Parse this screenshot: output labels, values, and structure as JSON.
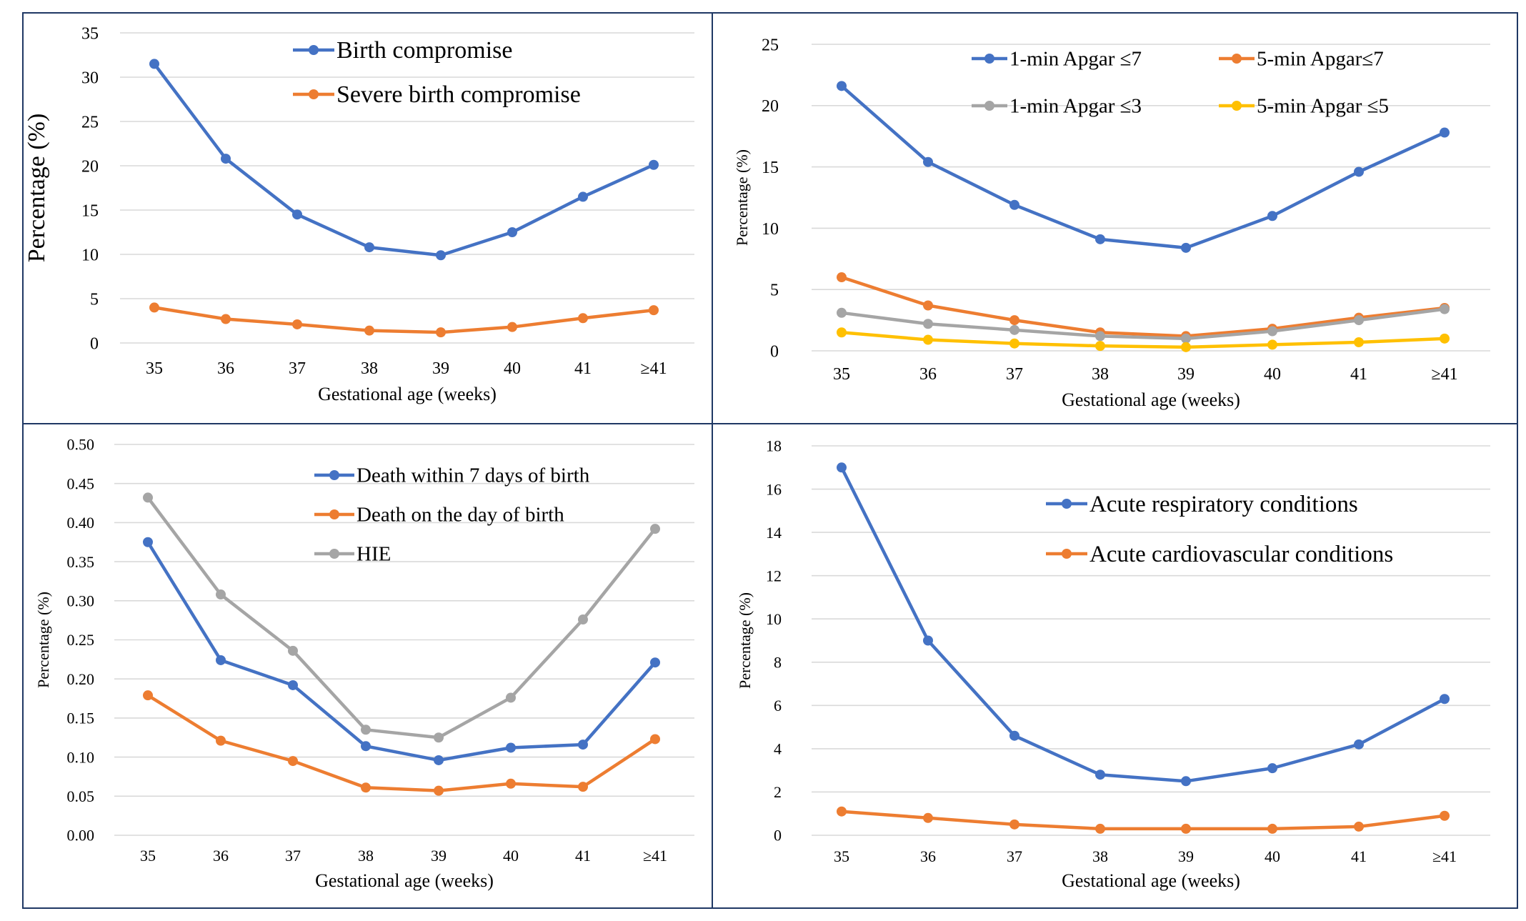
{
  "chart_data": [
    {
      "type": "line",
      "categories": [
        "35",
        "36",
        "37",
        "38",
        "39",
        "40",
        "41",
        "≥41"
      ],
      "xlabel": "Gestational age (weeks)",
      "ylabel": "Percentage (%)",
      "ylim": [
        0,
        35
      ],
      "yticks": [
        "0",
        "5",
        "10",
        "15",
        "20",
        "25",
        "30",
        "35"
      ],
      "grid": true,
      "legend_position": "top",
      "series": [
        {
          "name": "Birth compromise",
          "color": "#4472c4",
          "values": [
            31.5,
            20.8,
            14.5,
            10.8,
            9.9,
            12.5,
            16.5,
            20.1
          ]
        },
        {
          "name": "Severe birth compromise",
          "color": "#ed7d31",
          "values": [
            4.0,
            2.7,
            2.1,
            1.4,
            1.2,
            1.8,
            2.8,
            3.7
          ]
        }
      ]
    },
    {
      "type": "line",
      "categories": [
        "35",
        "36",
        "37",
        "38",
        "39",
        "40",
        "41",
        "≥41"
      ],
      "xlabel": "Gestational age (weeks)",
      "ylabel": "Percentage (%)",
      "ylim": [
        0,
        25
      ],
      "yticks": [
        "0",
        "5",
        "10",
        "15",
        "20",
        "25"
      ],
      "grid": true,
      "legend_position": "top",
      "series": [
        {
          "name": "1-min Apgar ≤7",
          "color": "#4472c4",
          "values": [
            21.6,
            15.4,
            11.9,
            9.1,
            8.4,
            11.0,
            14.6,
            17.8
          ]
        },
        {
          "name": "5-min Apgar≤7",
          "color": "#ed7d31",
          "values": [
            6.0,
            3.7,
            2.5,
            1.5,
            1.2,
            1.8,
            2.7,
            3.5
          ]
        },
        {
          "name": "1-min Apgar ≤3",
          "color": "#a5a5a5",
          "values": [
            3.1,
            2.2,
            1.7,
            1.2,
            1.0,
            1.6,
            2.5,
            3.4
          ]
        },
        {
          "name": "5-min Apgar ≤5",
          "color": "#ffc000",
          "values": [
            1.5,
            0.9,
            0.6,
            0.4,
            0.3,
            0.5,
            0.7,
            1.0
          ]
        }
      ]
    },
    {
      "type": "line",
      "categories": [
        "35",
        "36",
        "37",
        "38",
        "39",
        "40",
        "41",
        "≥41"
      ],
      "xlabel": "Gestational age (weeks)",
      "ylabel": "Percentage (%)",
      "ylim": [
        0,
        0.5
      ],
      "yticks": [
        "0.00",
        "0.05",
        "0.10",
        "0.15",
        "0.20",
        "0.25",
        "0.30",
        "0.35",
        "0.40",
        "0.45",
        "0.50"
      ],
      "grid": true,
      "legend_position": "top",
      "series": [
        {
          "name": "Death within 7 days of birth",
          "color": "#4472c4",
          "values": [
            0.375,
            0.224,
            0.192,
            0.114,
            0.096,
            0.112,
            0.116,
            0.221
          ]
        },
        {
          "name": "Death on the day of birth",
          "color": "#ed7d31",
          "values": [
            0.179,
            0.121,
            0.095,
            0.061,
            0.057,
            0.066,
            0.062,
            0.123
          ]
        },
        {
          "name": "HIE",
          "color": "#a5a5a5",
          "values": [
            0.432,
            0.308,
            0.236,
            0.135,
            0.125,
            0.176,
            0.276,
            0.392
          ]
        }
      ]
    },
    {
      "type": "line",
      "categories": [
        "35",
        "36",
        "37",
        "38",
        "39",
        "40",
        "41",
        "≥41"
      ],
      "xlabel": "Gestational age (weeks)",
      "ylabel": "Percentage (%)",
      "ylim": [
        0,
        18
      ],
      "yticks": [
        "0",
        "2",
        "4",
        "6",
        "8",
        "10",
        "12",
        "14",
        "16",
        "18"
      ],
      "grid": true,
      "legend_position": "top",
      "series": [
        {
          "name": "Acute respiratory conditions",
          "color": "#4472c4",
          "values": [
            17.0,
            9.0,
            4.6,
            2.8,
            2.5,
            3.1,
            4.2,
            6.3
          ]
        },
        {
          "name": "Acute cardiovascular conditions",
          "color": "#ed7d31",
          "values": [
            1.1,
            0.8,
            0.5,
            0.3,
            0.3,
            0.3,
            0.4,
            0.9
          ]
        }
      ]
    }
  ]
}
